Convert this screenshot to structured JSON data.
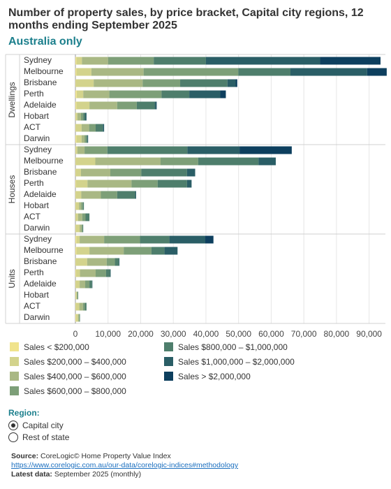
{
  "header": {
    "title": "Number of property sales, by price bracket, Capital city regions, 12 months ending September 2025",
    "subtitle": "Australia only"
  },
  "colors": {
    "segments": [
      "#f0e38c",
      "#d3d38c",
      "#a9b884",
      "#7d9f78",
      "#4e7e6c",
      "#2a5e66",
      "#0d3f5e"
    ],
    "grid": "#e6e6e6",
    "accent": "#1b7f8c"
  },
  "chart_data": {
    "type": "bar",
    "orientation": "horizontal",
    "stacked": true,
    "xlim": [
      0,
      95000
    ],
    "x_ticks": [
      0,
      10000,
      20000,
      30000,
      40000,
      50000,
      60000,
      70000,
      80000,
      90000
    ],
    "x_tick_labels": [
      "0",
      "10,000",
      "20,000",
      "30,000",
      "40,000",
      "50,000",
      "60,000",
      "70,000",
      "80,000",
      "90,000"
    ],
    "grid": true,
    "legend_position": "bottom",
    "series_names": [
      "Sales < $200,000",
      "Sales $200,000 – $400,000",
      "Sales $400,000 – $600,000",
      "Sales $600,000 – $800,000",
      "Sales $800,000 – $1,000,000",
      "Sales $1,000,000 – $2,000,000",
      "Sales > $2,000,000"
    ],
    "groups": [
      {
        "name": "Dwellings",
        "cities": [
          {
            "city": "Sydney",
            "values": [
              300,
              1700,
              8000,
              14000,
              16000,
              35000,
              18500
            ]
          },
          {
            "city": "Melbourne",
            "values": [
              300,
              4600,
              16000,
              29000,
              16000,
              23500,
              6000
            ]
          },
          {
            "city": "Brisbane",
            "values": [
              100,
              5500,
              15000,
              11500,
              14500,
              2500,
              500
            ]
          },
          {
            "city": "Perth",
            "values": [
              400,
              2000,
              8000,
              16000,
              8500,
              9500,
              1700
            ]
          },
          {
            "city": "Adelaide",
            "values": [
              300,
              4000,
              8500,
              6000,
              5500,
              500,
              100
            ]
          },
          {
            "city": "Hobart",
            "values": [
              100,
              500,
              1100,
              700,
              600,
              400,
              0
            ]
          },
          {
            "city": "ACT",
            "values": [
              100,
              1800,
              2300,
              2000,
              2200,
              400,
              0
            ]
          },
          {
            "city": "Darwin",
            "values": [
              300,
              1600,
              900,
              600,
              300,
              200,
              0
            ]
          }
        ]
      },
      {
        "name": "Houses",
        "cities": [
          {
            "city": "Sydney",
            "values": [
              100,
              500,
              2200,
              7000,
              24500,
              16000,
              16000
            ]
          },
          {
            "city": "Melbourne",
            "values": [
              100,
              6000,
              20000,
              11500,
              18500,
              5300,
              0
            ]
          },
          {
            "city": "Brisbane",
            "values": [
              100,
              1600,
              9000,
              9500,
              14000,
              2500,
              0
            ]
          },
          {
            "city": "Perth",
            "values": [
              200,
              3500,
              13500,
              8000,
              9000,
              1400,
              0
            ]
          },
          {
            "city": "Adelaide",
            "values": [
              100,
              1700,
              6000,
              5000,
              5500,
              300,
              0
            ]
          },
          {
            "city": "Hobart",
            "values": [
              100,
              1000,
              700,
              500,
              300,
              0,
              0
            ]
          },
          {
            "city": "ACT",
            "values": [
              0,
              800,
              1300,
              1000,
              1200,
              0,
              0
            ]
          },
          {
            "city": "Darwin",
            "values": [
              100,
              1200,
              600,
              300,
              200,
              0,
              0
            ]
          }
        ]
      },
      {
        "name": "Units",
        "cities": [
          {
            "city": "Sydney",
            "values": [
              300,
              1000,
              7500,
              11000,
              9000,
              11000,
              2500
            ]
          },
          {
            "city": "Melbourne",
            "values": [
              300,
              4000,
              10500,
              8500,
              4000,
              4000,
              0
            ]
          },
          {
            "city": "Brisbane",
            "values": [
              100,
              3500,
              6000,
              2500,
              1200,
              200,
              0
            ]
          },
          {
            "city": "Perth",
            "values": [
              200,
              1200,
              4800,
              3200,
              1200,
              200,
              0
            ]
          },
          {
            "city": "Adelaide",
            "values": [
              100,
              1200,
              1700,
              1300,
              800,
              100,
              0
            ]
          },
          {
            "city": "Hobart",
            "values": [
              100,
              250,
              250,
              150,
              100,
              0,
              0
            ]
          },
          {
            "city": "ACT",
            "values": [
              100,
              1100,
              1100,
              600,
              500,
              0,
              0
            ]
          },
          {
            "city": "Darwin",
            "values": [
              200,
              600,
              300,
              200,
              100,
              0,
              0
            ]
          }
        ]
      }
    ]
  },
  "region": {
    "label": "Region:",
    "options": [
      {
        "label": "Capital city",
        "selected": true
      },
      {
        "label": "Rest of state",
        "selected": false
      }
    ]
  },
  "footer": {
    "source_label": "Source:",
    "source_text": "CoreLogic© Home Property Value Index",
    "link": "https://www.corelogic.com.au/our-data/corelogic-indices#methodology",
    "latest_label": "Latest data:",
    "latest_text": "September 2025 (monthly)"
  }
}
